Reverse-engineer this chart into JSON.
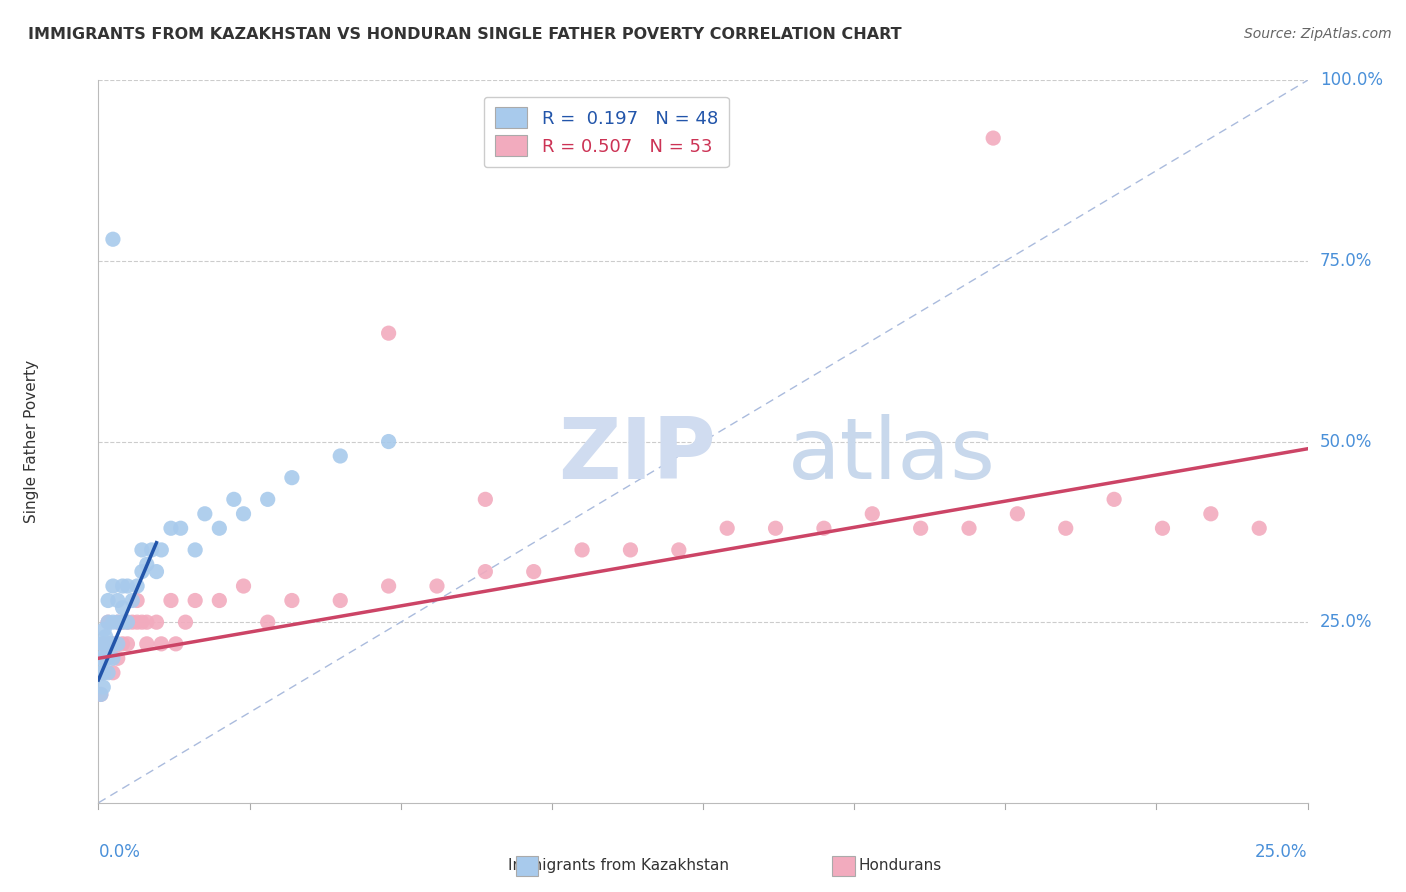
{
  "title": "IMMIGRANTS FROM KAZAKHSTAN VS HONDURAN SINGLE FATHER POVERTY CORRELATION CHART",
  "source": "Source: ZipAtlas.com",
  "ylabel": "Single Father Poverty",
  "xlim": [
    0,
    0.25
  ],
  "ylim": [
    0,
    1.0
  ],
  "blue_color": "#A8CAEC",
  "pink_color": "#F2ABBE",
  "blue_line_color": "#2255AA",
  "pink_line_color": "#CC4466",
  "dash_color": "#AABBDD",
  "grid_color": "#CCCCCC",
  "tick_color": "#4A90D9",
  "blue_x": [
    0.0005,
    0.0005,
    0.0005,
    0.0008,
    0.001,
    0.001,
    0.001,
    0.001,
    0.0012,
    0.0015,
    0.0015,
    0.002,
    0.002,
    0.002,
    0.002,
    0.002,
    0.003,
    0.003,
    0.003,
    0.003,
    0.004,
    0.004,
    0.004,
    0.005,
    0.005,
    0.005,
    0.006,
    0.006,
    0.007,
    0.008,
    0.009,
    0.009,
    0.01,
    0.011,
    0.012,
    0.013,
    0.015,
    0.017,
    0.02,
    0.022,
    0.025,
    0.028,
    0.03,
    0.035,
    0.04,
    0.05,
    0.06,
    0.003
  ],
  "blue_y": [
    0.15,
    0.18,
    0.2,
    0.22,
    0.16,
    0.18,
    0.2,
    0.22,
    0.24,
    0.2,
    0.23,
    0.18,
    0.2,
    0.22,
    0.25,
    0.28,
    0.2,
    0.22,
    0.25,
    0.3,
    0.22,
    0.25,
    0.28,
    0.25,
    0.27,
    0.3,
    0.25,
    0.3,
    0.28,
    0.3,
    0.32,
    0.35,
    0.33,
    0.35,
    0.32,
    0.35,
    0.38,
    0.38,
    0.35,
    0.4,
    0.38,
    0.42,
    0.4,
    0.42,
    0.45,
    0.48,
    0.5,
    0.78
  ],
  "pink_x": [
    0.0005,
    0.001,
    0.001,
    0.0015,
    0.002,
    0.002,
    0.003,
    0.003,
    0.004,
    0.004,
    0.005,
    0.005,
    0.006,
    0.006,
    0.007,
    0.008,
    0.008,
    0.009,
    0.01,
    0.01,
    0.012,
    0.013,
    0.015,
    0.016,
    0.018,
    0.02,
    0.025,
    0.03,
    0.035,
    0.04,
    0.05,
    0.06,
    0.07,
    0.08,
    0.09,
    0.1,
    0.11,
    0.12,
    0.13,
    0.14,
    0.15,
    0.16,
    0.17,
    0.18,
    0.19,
    0.2,
    0.21,
    0.22,
    0.23,
    0.24,
    0.06,
    0.08,
    0.185
  ],
  "pink_y": [
    0.15,
    0.18,
    0.22,
    0.2,
    0.22,
    0.25,
    0.18,
    0.22,
    0.2,
    0.25,
    0.22,
    0.25,
    0.22,
    0.25,
    0.25,
    0.25,
    0.28,
    0.25,
    0.22,
    0.25,
    0.25,
    0.22,
    0.28,
    0.22,
    0.25,
    0.28,
    0.28,
    0.3,
    0.25,
    0.28,
    0.28,
    0.3,
    0.3,
    0.32,
    0.32,
    0.35,
    0.35,
    0.35,
    0.38,
    0.38,
    0.38,
    0.4,
    0.38,
    0.38,
    0.4,
    0.38,
    0.42,
    0.38,
    0.4,
    0.38,
    0.65,
    0.42,
    0.92
  ],
  "blue_line_x": [
    0.0,
    0.012
  ],
  "blue_line_y": [
    0.17,
    0.36
  ],
  "pink_line_x": [
    0.0,
    0.25
  ],
  "pink_line_y": [
    0.2,
    0.49
  ]
}
